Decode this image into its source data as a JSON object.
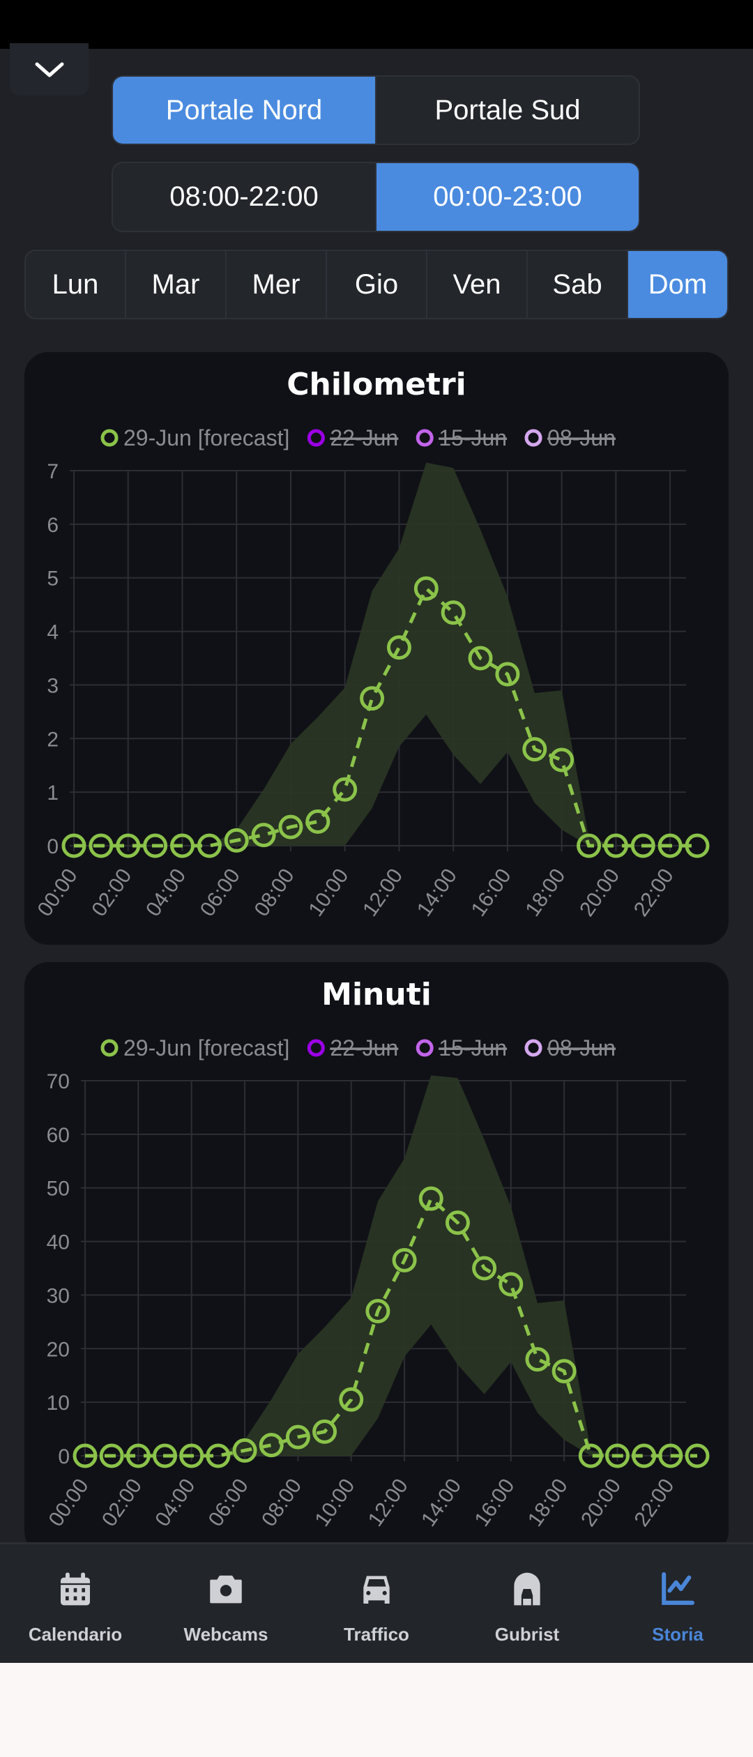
{
  "portal_selector": {
    "options": [
      "Portale Nord",
      "Portale Sud"
    ],
    "selected": 0
  },
  "hours_selector": {
    "options": [
      "08:00-22:00",
      "00:00-23:00"
    ],
    "selected": 1
  },
  "day_selector": {
    "options": [
      "Lun",
      "Mar",
      "Mer",
      "Gio",
      "Ven",
      "Sab",
      "Dom"
    ],
    "selected": 6
  },
  "legend": [
    {
      "label": "29-Jun [forecast]",
      "color": "#8bc34a",
      "hidden": false
    },
    {
      "label": "22-Jun",
      "color": "#9b00e6",
      "hidden": true
    },
    {
      "label": "15-Jun",
      "color": "#c264ea",
      "hidden": true
    },
    {
      "label": "08-Jun",
      "color": "#d4a8ee",
      "hidden": true
    }
  ],
  "colors": {
    "accent": "#4a8be0",
    "series": "#8bc34a",
    "band": "#2a3624"
  },
  "chart_data": [
    {
      "type": "line",
      "title": "Chilometri",
      "ylim": [
        0,
        7
      ],
      "yticks": [
        0,
        1,
        2,
        3,
        4,
        5,
        6,
        7
      ],
      "x": [
        "00:00",
        "01:00",
        "02:00",
        "03:00",
        "04:00",
        "05:00",
        "06:00",
        "07:00",
        "08:00",
        "09:00",
        "10:00",
        "11:00",
        "12:00",
        "13:00",
        "14:00",
        "15:00",
        "16:00",
        "17:00",
        "18:00",
        "19:00",
        "20:00",
        "21:00",
        "22:00",
        "23:00"
      ],
      "xticks": [
        "00:00",
        "02:00",
        "04:00",
        "06:00",
        "08:00",
        "10:00",
        "12:00",
        "14:00",
        "16:00",
        "18:00",
        "20:00",
        "22:00"
      ],
      "series": [
        {
          "name": "29-Jun [forecast]",
          "values": [
            0,
            0,
            0,
            0,
            0,
            0,
            0.1,
            0.2,
            0.35,
            0.45,
            1.05,
            2.75,
            3.7,
            4.8,
            4.35,
            3.5,
            3.2,
            1.8,
            1.6,
            0,
            0,
            0,
            0,
            0
          ]
        }
      ],
      "band": {
        "upper": [
          0,
          0,
          0,
          0,
          0,
          0,
          0.3,
          1.05,
          1.9,
          2.4,
          2.95,
          4.75,
          5.55,
          7.15,
          7.05,
          5.9,
          4.65,
          2.85,
          2.9,
          0.15,
          0,
          0,
          0,
          0
        ],
        "lower": [
          0,
          0,
          0,
          0,
          0,
          0,
          0,
          0,
          0,
          0,
          0,
          0.7,
          1.85,
          2.45,
          1.7,
          1.15,
          1.75,
          0.8,
          0.3,
          0,
          0,
          0,
          0,
          0
        ]
      }
    },
    {
      "type": "line",
      "title": "Minuti",
      "ylim": [
        0,
        70
      ],
      "yticks": [
        0,
        10,
        20,
        30,
        40,
        50,
        60,
        70
      ],
      "x": [
        "00:00",
        "01:00",
        "02:00",
        "03:00",
        "04:00",
        "05:00",
        "06:00",
        "07:00",
        "08:00",
        "09:00",
        "10:00",
        "11:00",
        "12:00",
        "13:00",
        "14:00",
        "15:00",
        "16:00",
        "17:00",
        "18:00",
        "19:00",
        "20:00",
        "21:00",
        "22:00",
        "23:00"
      ],
      "xticks": [
        "00:00",
        "02:00",
        "04:00",
        "06:00",
        "08:00",
        "10:00",
        "12:00",
        "14:00",
        "16:00",
        "18:00",
        "20:00",
        "22:00"
      ],
      "series": [
        {
          "name": "29-Jun [forecast]",
          "values": [
            0,
            0,
            0,
            0,
            0,
            0,
            1,
            2,
            3.5,
            4.5,
            10.5,
            27,
            36.5,
            48,
            43.5,
            35,
            32,
            18,
            15.8,
            0,
            0,
            0,
            0,
            0
          ]
        }
      ],
      "band": {
        "upper": [
          0,
          0,
          0,
          0,
          0,
          0,
          3,
          10.5,
          19,
          24,
          29.5,
          47.5,
          55.5,
          71,
          70.5,
          59,
          46.5,
          28.5,
          29,
          1,
          0,
          0,
          0,
          0
        ],
        "lower": [
          0,
          0,
          0,
          0,
          0,
          0,
          0,
          0,
          0,
          0,
          0,
          7,
          18.5,
          24.5,
          17,
          11.5,
          17.5,
          8,
          3,
          0,
          0,
          0,
          0,
          0
        ]
      }
    }
  ],
  "nav": [
    {
      "label": "Calendario",
      "icon": "calendar-icon"
    },
    {
      "label": "Webcams",
      "icon": "camera-icon"
    },
    {
      "label": "Traffico",
      "icon": "car-icon"
    },
    {
      "label": "Gubrist",
      "icon": "tunnel-icon"
    },
    {
      "label": "Storia",
      "icon": "chart-line-icon",
      "active": true
    }
  ]
}
